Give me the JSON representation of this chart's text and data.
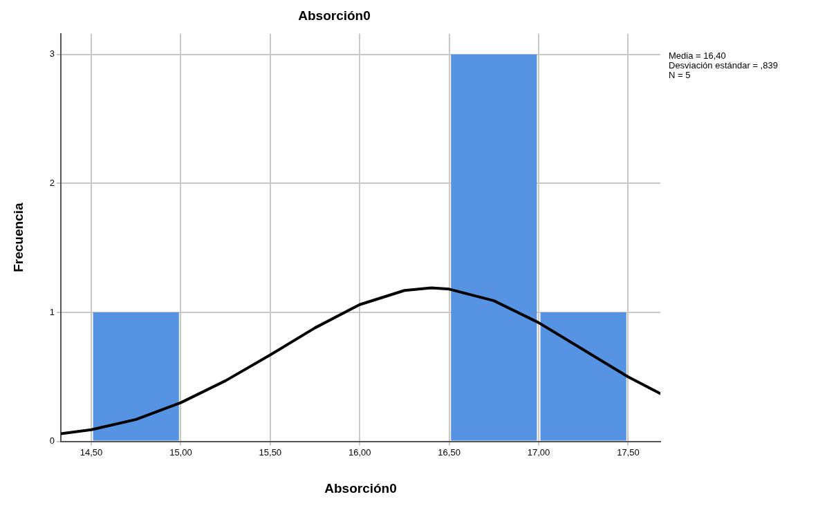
{
  "chart_data": {
    "type": "histogram",
    "title": "Absorción0",
    "xlabel": "Absorción0",
    "ylabel": "Frecuencia",
    "bins": [
      14.5,
      15,
      15.5,
      16,
      16.5,
      17,
      17.5
    ],
    "values": [
      1,
      0,
      0,
      0,
      3,
      1
    ],
    "color": "#5694e3",
    "series": [
      {
        "type": "line",
        "color": "#000000",
        "marker": "none",
        "x": [
          14.33,
          14.5,
          14.75,
          15,
          15.25,
          15.5,
          15.75,
          16,
          16.25,
          16.4,
          16.5,
          16.75,
          17,
          17.25,
          17.5,
          17.68
        ],
        "values": [
          0.06,
          0.09,
          0.17,
          0.3,
          0.47,
          0.67,
          0.88,
          1.06,
          1.17,
          1.19,
          1.18,
          1.09,
          0.92,
          0.71,
          0.5,
          0.37
        ]
      }
    ],
    "xlim": [
      14.33,
      17.68
    ],
    "ylim": [
      0,
      3.16
    ],
    "xticks": [
      {
        "value": 14.5,
        "label": "14,50"
      },
      {
        "value": 15,
        "label": "15,00"
      },
      {
        "value": 15.5,
        "label": "15,50"
      },
      {
        "value": 16,
        "label": "16,00"
      },
      {
        "value": 16.5,
        "label": "16,50"
      },
      {
        "value": 17,
        "label": "17,00"
      },
      {
        "value": 17.5,
        "label": "17,50"
      }
    ],
    "yticks": [
      0,
      1,
      2,
      3
    ],
    "grid": true,
    "annotations": [
      "Media = 16,40",
      "Desviación estándar = ,839",
      "N = 5"
    ]
  }
}
